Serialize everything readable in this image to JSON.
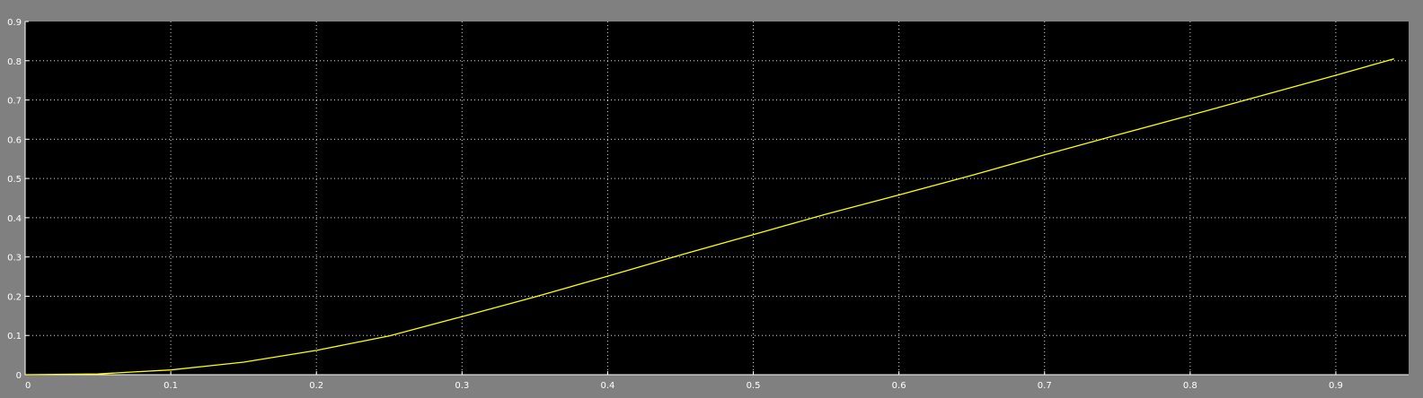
{
  "chart_data": {
    "type": "line",
    "title": "",
    "xlabel": "",
    "ylabel": "",
    "xlim": [
      0,
      0.95
    ],
    "ylim": [
      0,
      0.9
    ],
    "grid": true,
    "x_ticks": [
      "0",
      "0.1",
      "0.2",
      "0.3",
      "0.4",
      "0.5",
      "0.6",
      "0.7",
      "0.8",
      "0.9"
    ],
    "y_ticks": [
      "0",
      "0.1",
      "0.2",
      "0.3",
      "0.4",
      "0.5",
      "0.6",
      "0.7",
      "0.8",
      "0.9"
    ],
    "colors": {
      "background": "#808080",
      "plot_area": "#000000",
      "grid": "#ffffff",
      "axes": "#ffffff",
      "line": "#ffff00"
    },
    "series": [
      {
        "x": [
          0,
          0.05,
          0.1,
          0.15,
          0.2,
          0.25,
          0.3,
          0.35,
          0.4,
          0.45,
          0.5,
          0.55,
          0.6,
          0.65,
          0.7,
          0.75,
          0.8,
          0.85,
          0.9,
          0.94
        ],
        "y": [
          0,
          0.002,
          0.012,
          0.032,
          0.062,
          0.099,
          0.148,
          0.198,
          0.251,
          0.305,
          0.357,
          0.409,
          0.458,
          0.508,
          0.56,
          0.611,
          0.661,
          0.712,
          0.763,
          0.805
        ]
      }
    ]
  }
}
